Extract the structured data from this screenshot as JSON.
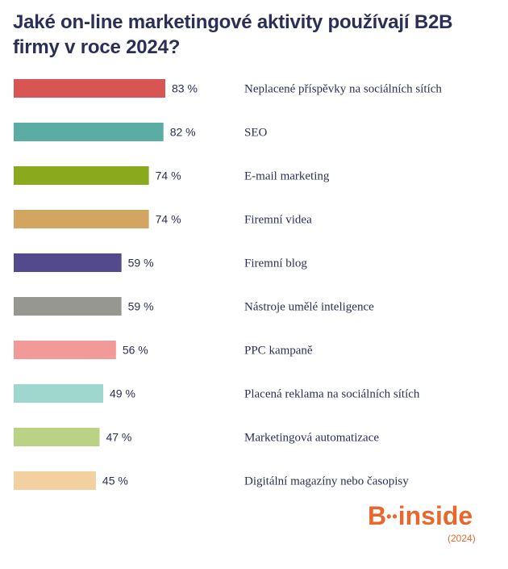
{
  "chart_data": {
    "type": "bar",
    "orientation": "horizontal",
    "title": "Jaké on-line marketingové aktivity používají B2B firmy v roce 2024?",
    "xlim": [
      0,
      100
    ],
    "grid": false,
    "legend": "none",
    "value_suffix": " %",
    "categories": [
      "Neplacené příspěvky na sociálních sítích",
      "SEO",
      "E-mail marketing",
      "Firemní videa",
      "Firemní blog",
      "Nástroje umělé inteligence",
      "PPC kampaně",
      "Placená reklama na sociálních sítích",
      "Marketingová automatizace",
      "Digitální magazíny nebo časopisy"
    ],
    "values": [
      83,
      82,
      74,
      74,
      59,
      59,
      56,
      49,
      47,
      45
    ],
    "colors": [
      "#d95553",
      "#5aada3",
      "#8aaa1e",
      "#d2a561",
      "#524a8c",
      "#979792",
      "#f19a98",
      "#9fd6cd",
      "#b9d284",
      "#f3d0a0"
    ]
  },
  "brand": {
    "logo_b": "B",
    "logo_dots": "••",
    "logo_word": "inside",
    "year": "(2024)"
  }
}
